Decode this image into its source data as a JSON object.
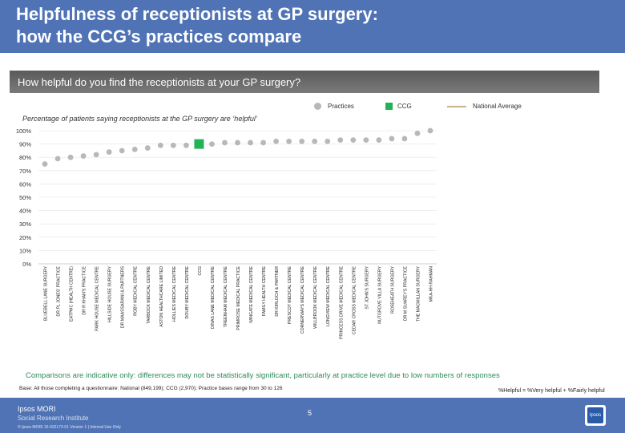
{
  "header": {
    "title_line1": "Helpfulness of receptionists at GP surgery:",
    "title_line2": "how the CCG’s practices compare"
  },
  "question": "How helpful do you find the receptionists at your GP surgery?",
  "legend": {
    "practices": "Practices",
    "ccg": "CCG",
    "national": "National Average"
  },
  "colors": {
    "practice": "#b8b8b8",
    "ccg": "#21b356",
    "national": "#c8b48a",
    "header": "#4f73b5"
  },
  "chart_data": {
    "type": "scatter",
    "title": "Percentage of patients saying receptionists at the GP surgery are ‘helpful’",
    "ylabel": "",
    "ylim": [
      0,
      100
    ],
    "yticks": [
      "0%",
      "10%",
      "20%",
      "30%",
      "40%",
      "50%",
      "60%",
      "70%",
      "80%",
      "90%",
      "100%"
    ],
    "categories": [
      "BLUEBELL LANE SURGERY",
      "DR PL JONES' PRACTICE",
      "EATPMC (HEALTH CENTRE)",
      "DR R KHAN'S PRACTICE",
      "PARK HOUSE MEDICAL CENTRE",
      "HILLSIDE HOUSE SURGERY",
      "DR MAASSARANI & PARTNERS",
      "ROBY MEDICAL CENTRE",
      "TARBOCK MEDICAL CENTRE",
      "ASTON HEALTHCARE LIMITED",
      "HOLLIES MEDICAL CENTRE",
      "DOUBY MEDICAL CENTRE",
      "CCG",
      "DINAS LANE MEDICAL CENTRE",
      "TREENHAM MEDICAL CENTRE",
      "PRIMROSE MEDICAL PRACTICE",
      "WINGATE MEDICAL CENTRE",
      "FAMILY HEALTH CENTRE",
      "DR KIRLOCH & PARTNER",
      "PRESCOT MEDICAL CENTRE",
      "CORNERWAYS MEDICAL CENTRE",
      "WILLBROOK MEDICAL CENTRE",
      "LONGVIEW MEDICAL CENTRE",
      "PRINCESS DRIVE MEDICAL CENTRE",
      "CEDAR CROSS MEDICAL CENTRE",
      "ST JOHN'S SURGERY",
      "NUTGROVE VILLA SURGERY",
      "ROSEHEATH SURGERY",
      "DR M SUAREY'S PRACTICE",
      "THE MACMILLAN SURGERY",
      "MKA-HH RAHMAN"
    ],
    "values": [
      75,
      79,
      80,
      81,
      82,
      84,
      85,
      86,
      87,
      89,
      89,
      89,
      90,
      90,
      91,
      91,
      91,
      91,
      92,
      92,
      92,
      92,
      92,
      93,
      93,
      93,
      93,
      94,
      94,
      98,
      100
    ],
    "ccg_index": 12,
    "national_average": null
  },
  "notes": {
    "comparison": "Comparisons are indicative only: differences may not be statistically significant, particularly at practice level due to low numbers of responses",
    "base": "Base: All those completing a questionnaire: National (849,199); CCG (2,970); Practice bases range from 30 to 126",
    "helpful_def": "%Helpful = %Very helpful + %Fairly helpful"
  },
  "footer": {
    "page": "5",
    "brand1": "Ipsos MORI",
    "brand2": "Social Research Institute",
    "ref": "© Ipsos MORI    15-032172-01 Version 1 | Internal Use Only",
    "logo_text": "Ipsos"
  }
}
